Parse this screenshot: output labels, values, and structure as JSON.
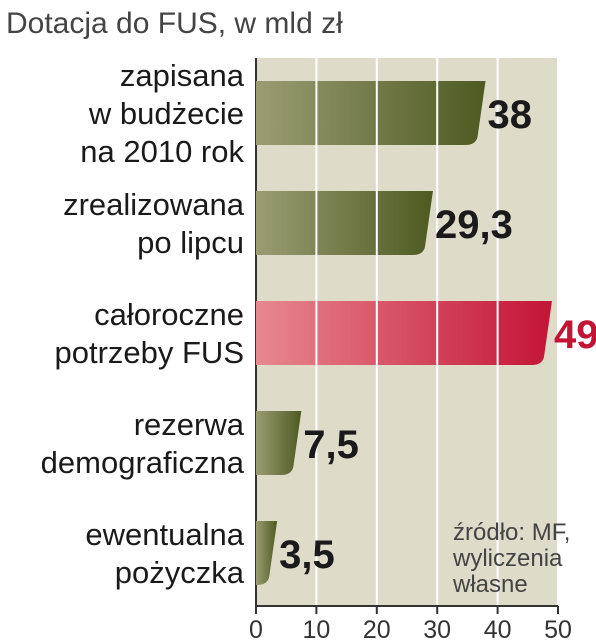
{
  "chart_data": {
    "type": "bar",
    "orientation": "horizontal",
    "title": "Dotacja do FUS, w mld zł",
    "categories": [
      [
        "zapisana",
        "w budżecie",
        "na 2010 rok"
      ],
      [
        "zrealizowana",
        "po lipcu"
      ],
      [
        "całoroczne",
        "potrzeby FUS"
      ],
      [
        "rezerwa",
        "demograficzna"
      ],
      [
        "ewentualna",
        "pożyczka"
      ]
    ],
    "values": [
      38,
      29.3,
      49,
      7.5,
      3.5
    ],
    "value_labels": [
      "38",
      "29,3",
      "49",
      "7,5",
      "3,5"
    ],
    "highlight_index": 2,
    "xlim": [
      0,
      50
    ],
    "xticks": [
      0,
      10,
      20,
      30,
      40,
      50
    ],
    "xticklabels": [
      "0",
      "10",
      "20",
      "30",
      "40",
      "50"
    ],
    "grid": true,
    "source": [
      "źródło: MF,",
      "wyliczenia",
      "własne"
    ]
  },
  "colors": {
    "bar_dark": "#4e5a22",
    "bar_light": "#9a9d72",
    "highlight_dark": "#c41436",
    "highlight_light": "#e7888f",
    "highlight_text": "#c41436",
    "value_text": "#1a1a1a",
    "plot_background": "#dedcc9",
    "axis": "#333333"
  }
}
